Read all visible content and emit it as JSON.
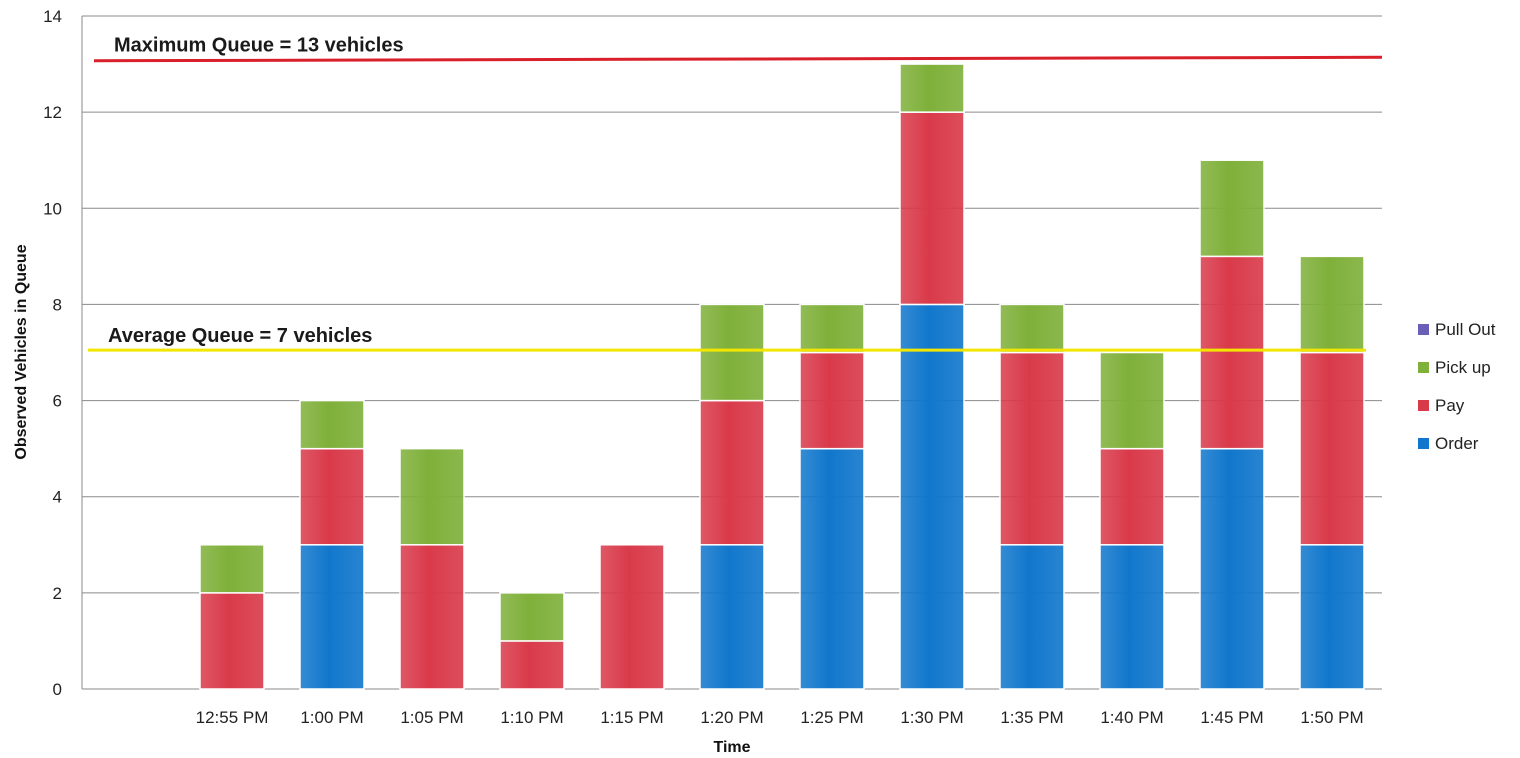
{
  "chart_data": {
    "type": "bar",
    "stacked": true,
    "title": "",
    "xlabel": "Time",
    "ylabel": "Observed Vehicles in Queue",
    "ylim": [
      0,
      14
    ],
    "yticks": [
      0,
      2,
      4,
      6,
      8,
      10,
      12,
      14
    ],
    "grid": true,
    "legend_position": "right",
    "categories": [
      "",
      "12:55 PM",
      "1:00 PM",
      "1:05 PM",
      "1:10 PM",
      "1:15 PM",
      "1:20 PM",
      "1:25 PM",
      "1:30 PM",
      "1:35 PM",
      "1:40 PM",
      "1:45 PM",
      "1:50 PM"
    ],
    "series": [
      {
        "name": "Order",
        "color": "#1177cc",
        "values": [
          0,
          0,
          3,
          0,
          0,
          0,
          3,
          5,
          8,
          3,
          3,
          5,
          3
        ]
      },
      {
        "name": "Pay",
        "color": "#d93a4a",
        "values": [
          0,
          2,
          2,
          3,
          1,
          3,
          3,
          2,
          4,
          4,
          2,
          4,
          4
        ]
      },
      {
        "name": "Pick up",
        "color": "#7fb03a",
        "values": [
          0,
          1,
          1,
          2,
          1,
          0,
          2,
          1,
          1,
          1,
          2,
          2,
          2
        ]
      },
      {
        "name": "Pull Out",
        "color": "#6a5fb8",
        "values": [
          0,
          0,
          0,
          0,
          0,
          0,
          0,
          0,
          0,
          0,
          0,
          0,
          0
        ]
      }
    ],
    "legend_order": [
      "Pull Out",
      "Pick up",
      "Pay",
      "Order"
    ],
    "reference_lines": [
      {
        "label": "Maximum Queue = 13 vehicles",
        "value": 13.1,
        "color": "#d9202a"
      },
      {
        "label": "Average Queue = 7 vehicles",
        "value": 7.05,
        "color": "#f2e600"
      }
    ]
  }
}
